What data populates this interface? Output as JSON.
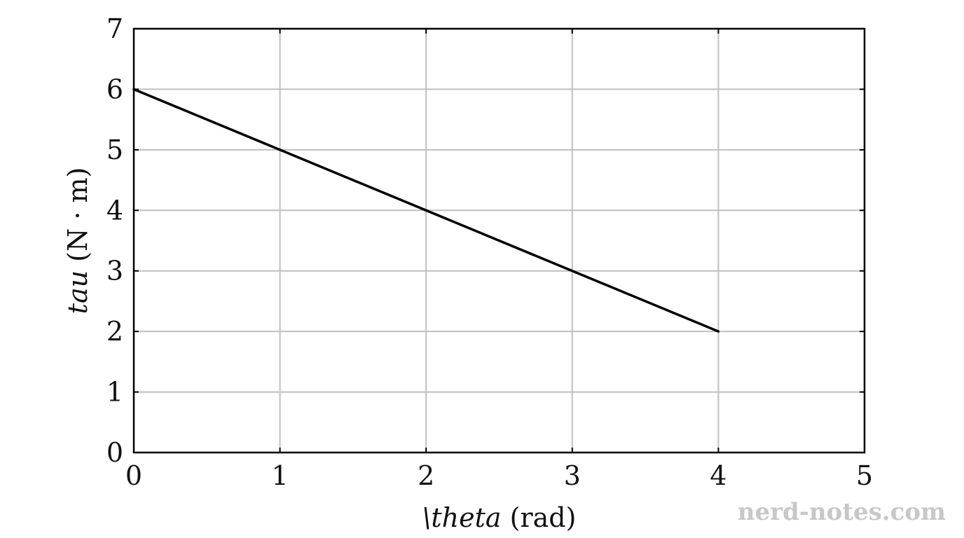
{
  "chart_data": {
    "type": "line",
    "x": [
      0,
      4
    ],
    "series": [
      {
        "values": [
          6,
          2
        ],
        "color": "#000000"
      }
    ],
    "xlabel": "\\theta (rad)",
    "ylabel": "tau (N · m)",
    "xlabel_parts": {
      "symbol": "\\theta",
      "unit": " (rad)"
    },
    "ylabel_parts": {
      "symbol": "tau",
      "unit": " (N · m)"
    },
    "xlim": [
      0,
      5
    ],
    "ylim": [
      0,
      7
    ],
    "xticks": [
      "0",
      "1",
      "2",
      "3",
      "4",
      "5"
    ],
    "yticks": [
      "0",
      "1",
      "2",
      "3",
      "4",
      "5",
      "6",
      "7"
    ],
    "grid": true,
    "grid_color": "#bfbfbf",
    "watermark": "nerd-notes.com"
  }
}
